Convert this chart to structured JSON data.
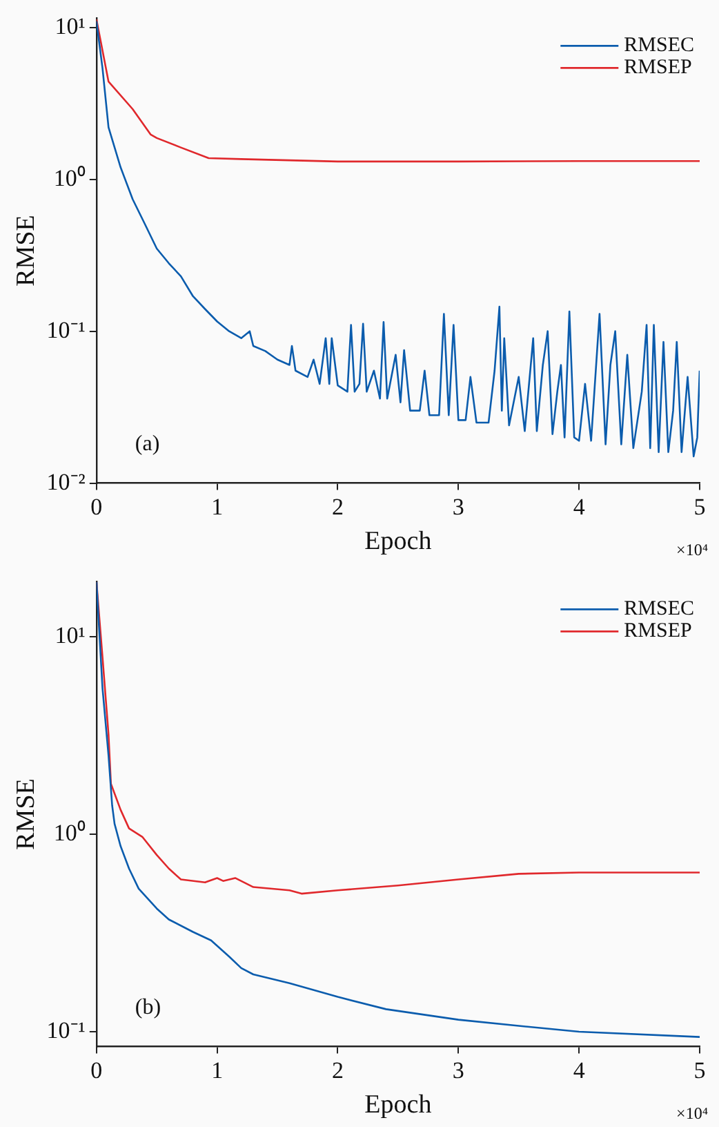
{
  "chart_data": [
    {
      "type": "line",
      "xlabel": "Epoch",
      "ylabel": "RMSE",
      "annotations": [
        "(a)",
        "×10⁴"
      ],
      "log": "y",
      "grid": false,
      "legend": "top right",
      "marker": "none",
      "line_style": "solid",
      "xlim": [
        0,
        5
      ],
      "xticks": [
        0,
        1,
        2,
        3,
        4,
        5
      ],
      "ylim": [
        0.01,
        11.5
      ],
      "yticks": [
        {
          "value": 0.01,
          "label": "10⁻²"
        },
        {
          "value": 0.1,
          "label": "10⁻¹"
        },
        {
          "value": 1,
          "label": "10⁰"
        },
        {
          "value": 10,
          "label": "10¹"
        }
      ],
      "series": [
        {
          "name": "RMSEC",
          "color": "#0b5cad",
          "x": [
            0,
            0.05,
            0.1,
            0.2,
            0.3,
            0.4,
            0.5,
            0.6,
            0.7,
            0.8,
            0.9,
            1.0,
            1.1,
            1.2,
            1.27,
            1.3,
            1.4,
            1.5,
            1.6,
            1.62,
            1.65,
            1.75,
            1.8,
            1.85,
            1.9,
            1.93,
            1.95,
            2.0,
            2.08,
            2.11,
            2.14,
            2.18,
            2.21,
            2.24,
            2.3,
            2.35,
            2.38,
            2.41,
            2.48,
            2.52,
            2.55,
            2.6,
            2.68,
            2.72,
            2.76,
            2.84,
            2.88,
            2.92,
            2.96,
            3.0,
            3.06,
            3.1,
            3.15,
            3.25,
            3.3,
            3.34,
            3.36,
            3.38,
            3.42,
            3.5,
            3.55,
            3.6,
            3.62,
            3.65,
            3.7,
            3.74,
            3.78,
            3.82,
            3.85,
            3.88,
            3.92,
            3.96,
            4.0,
            4.05,
            4.1,
            4.17,
            4.22,
            4.26,
            4.3,
            4.35,
            4.4,
            4.45,
            4.52,
            4.56,
            4.59,
            4.62,
            4.66,
            4.7,
            4.74,
            4.78,
            4.81,
            4.85,
            4.9,
            4.95,
            4.98,
            5.0
          ],
          "values": [
            11,
            5.4,
            2.2,
            1.2,
            0.74,
            0.51,
            0.35,
            0.28,
            0.23,
            0.17,
            0.14,
            0.116,
            0.1,
            0.09,
            0.1,
            0.08,
            0.074,
            0.065,
            0.06,
            0.08,
            0.055,
            0.05,
            0.065,
            0.045,
            0.09,
            0.045,
            0.09,
            0.044,
            0.04,
            0.11,
            0.04,
            0.045,
            0.112,
            0.04,
            0.055,
            0.036,
            0.115,
            0.036,
            0.07,
            0.034,
            0.075,
            0.03,
            0.03,
            0.055,
            0.028,
            0.028,
            0.13,
            0.028,
            0.11,
            0.026,
            0.026,
            0.05,
            0.025,
            0.025,
            0.055,
            0.145,
            0.03,
            0.09,
            0.024,
            0.05,
            0.022,
            0.06,
            0.09,
            0.022,
            0.06,
            0.1,
            0.021,
            0.04,
            0.06,
            0.02,
            0.135,
            0.02,
            0.019,
            0.045,
            0.019,
            0.13,
            0.018,
            0.06,
            0.1,
            0.018,
            0.07,
            0.017,
            0.04,
            0.11,
            0.017,
            0.11,
            0.016,
            0.085,
            0.016,
            0.03,
            0.085,
            0.016,
            0.05,
            0.015,
            0.02,
            0.055
          ]
        },
        {
          "name": "RMSEP",
          "color": "#e0282c",
          "x": [
            0,
            0.1,
            0.3,
            0.45,
            0.5,
            0.7,
            0.93,
            1.2,
            2,
            3,
            4,
            5
          ],
          "values": [
            11.3,
            4.4,
            2.9,
            1.97,
            1.87,
            1.62,
            1.38,
            1.36,
            1.31,
            1.31,
            1.32,
            1.32
          ]
        }
      ]
    },
    {
      "type": "line",
      "xlabel": "Epoch",
      "ylabel": "RMSE",
      "annotations": [
        "(b)",
        "×10⁴"
      ],
      "log": "y",
      "grid": false,
      "legend": "top right",
      "marker": "none",
      "line_style": "solid",
      "xlim": [
        0,
        5
      ],
      "xticks": [
        0,
        1,
        2,
        3,
        4,
        5
      ],
      "ylim": [
        0.084,
        19
      ],
      "yticks": [
        {
          "value": 0.1,
          "label": "10⁻¹"
        },
        {
          "value": 1,
          "label": "10⁰"
        },
        {
          "value": 10,
          "label": "10¹"
        }
      ],
      "series": [
        {
          "name": "RMSEC",
          "color": "#0b5cad",
          "x": [
            0,
            0.05,
            0.1,
            0.13,
            0.15,
            0.2,
            0.27,
            0.35,
            0.5,
            0.6,
            0.8,
            0.95,
            1.1,
            1.2,
            1.3,
            1.6,
            2.0,
            2.4,
            3.0,
            3.5,
            4.0,
            5.0
          ],
          "values": [
            19,
            5.5,
            2.5,
            1.4,
            1.13,
            0.87,
            0.67,
            0.53,
            0.42,
            0.37,
            0.32,
            0.29,
            0.24,
            0.21,
            0.195,
            0.176,
            0.15,
            0.13,
            0.115,
            0.107,
            0.1,
            0.094
          ]
        },
        {
          "name": "RMSEP",
          "color": "#e0282c",
          "x": [
            0,
            0.05,
            0.1,
            0.12,
            0.2,
            0.27,
            0.38,
            0.5,
            0.6,
            0.7,
            0.9,
            1.0,
            1.05,
            1.15,
            1.3,
            1.6,
            1.7,
            2.0,
            2.5,
            3.0,
            3.5,
            4.0,
            5.0
          ],
          "values": [
            19,
            7.9,
            3.2,
            1.8,
            1.33,
            1.07,
            0.97,
            0.785,
            0.67,
            0.59,
            0.57,
            0.6,
            0.58,
            0.6,
            0.54,
            0.52,
            0.5,
            0.52,
            0.55,
            0.59,
            0.63,
            0.64,
            0.64
          ]
        }
      ]
    }
  ]
}
